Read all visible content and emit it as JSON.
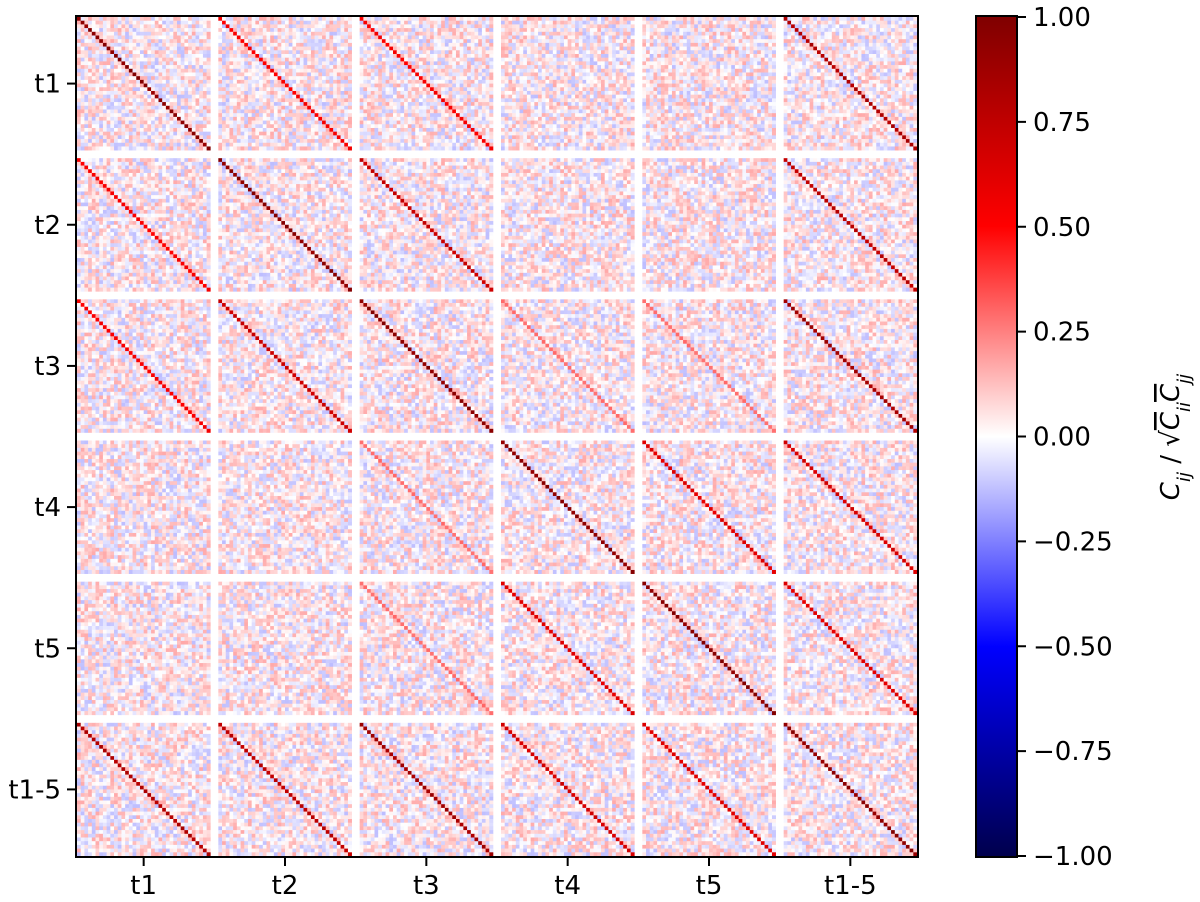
{
  "chart_data": {
    "type": "heatmap",
    "title": "",
    "row_labels": [
      "t1",
      "t2",
      "t3",
      "t4",
      "t5",
      "t1-5"
    ],
    "col_labels": [
      "t1",
      "t2",
      "t3",
      "t4",
      "t5",
      "t1-5"
    ],
    "bins_per_block": 36,
    "colorbar": {
      "colormap": "seismic",
      "vmin": -1.0,
      "vmax": 1.0,
      "ticks": [
        "1.00",
        "0.75",
        "0.50",
        "0.25",
        "0.00",
        "−0.25",
        "−0.50",
        "−0.75",
        "−1.00"
      ],
      "tick_values": [
        1.0,
        0.75,
        0.5,
        0.25,
        0.0,
        -0.25,
        -0.5,
        -0.75,
        -1.0
      ],
      "label_main": "C",
      "label_sub_ij": "ij",
      "label_sep": " / ",
      "label_sqrt": "√",
      "label_sub_ii": "ii",
      "label_sub_jj": "jj"
    },
    "block_diagonal_correlation": [
      [
        1.0,
        0.55,
        0.55,
        0.08,
        0.08,
        0.85
      ],
      [
        0.55,
        1.0,
        0.75,
        0.1,
        0.12,
        0.8
      ],
      [
        0.55,
        0.75,
        1.0,
        0.3,
        0.3,
        0.9
      ],
      [
        0.08,
        0.1,
        0.3,
        1.0,
        0.65,
        0.7
      ],
      [
        0.08,
        0.12,
        0.3,
        0.65,
        1.0,
        0.65
      ],
      [
        0.85,
        0.8,
        0.9,
        0.7,
        0.65,
        1.0
      ]
    ],
    "off_diagonal_noise_range": [
      -0.15,
      0.15
    ],
    "grid": false
  }
}
